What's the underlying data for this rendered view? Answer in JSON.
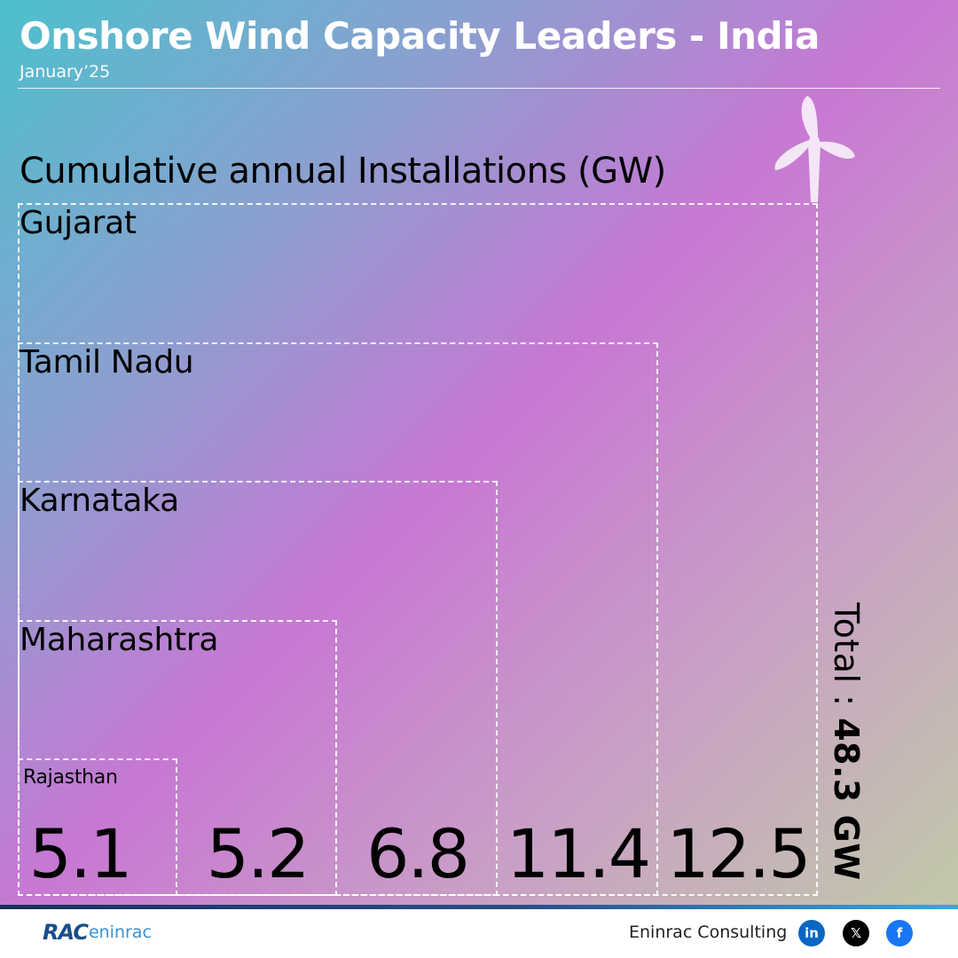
{
  "header": {
    "title": "Onshore Wind Capacity Leaders - India",
    "subtitle": "January’25"
  },
  "chart_data": {
    "type": "bar",
    "title": "Cumulative annual Installations (GW)",
    "unit": "GW",
    "categories": [
      "Rajasthan",
      "Maharashtra",
      "Karnataka",
      "Tamil Nadu",
      "Gujarat"
    ],
    "values": [
      5.1,
      5.2,
      6.8,
      11.4,
      12.5
    ],
    "value_labels": [
      "5.1",
      "5.2",
      "6.8",
      "11.4",
      "12.5"
    ],
    "total_label": "Total : ",
    "total_value": "48.3 GW"
  },
  "footer": {
    "logo_rac": "RAC",
    "logo_eninrac": "eninrac",
    "brand_name": "Eninrac Consulting",
    "social": [
      {
        "label": "in",
        "color": "#0a66c2"
      },
      {
        "label": "𝕏",
        "color": "#000000"
      },
      {
        "label": "f",
        "color": "#1877f2"
      }
    ]
  }
}
